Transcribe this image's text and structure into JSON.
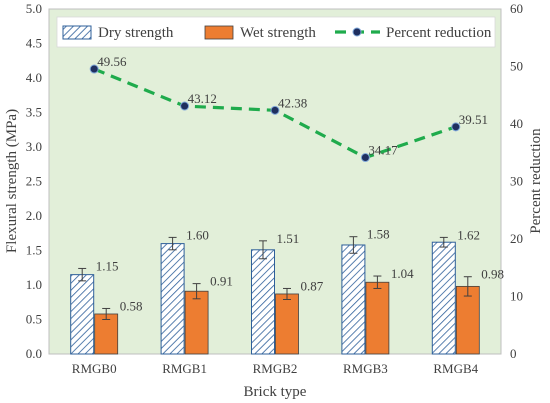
{
  "chart_data": {
    "type": "bar",
    "xlabel": "Brick type",
    "ylabel": "Flexural strength (MPa)",
    "y2label": "Percent reduction",
    "categories": [
      "RMGB0",
      "RMGB1",
      "RMGB2",
      "RMGB3",
      "RMGB4"
    ],
    "ylim": [
      0,
      5.0
    ],
    "y2lim": [
      0,
      60
    ],
    "yticks": [
      "0.0",
      "0.5",
      "1.0",
      "1.5",
      "2.0",
      "2.5",
      "3.0",
      "3.5",
      "4.0",
      "4.5",
      "5.0"
    ],
    "y2ticks": [
      "0",
      "10",
      "20",
      "30",
      "40",
      "50",
      "60"
    ],
    "grid": false,
    "legend_position": "top",
    "colors": {
      "plot_bg": "#e2efd9",
      "dry": "#2e5f9a",
      "wet": "#ed7d31",
      "line": "#1fab4c",
      "marker": "#1f2f5f"
    },
    "series": [
      {
        "name": "Dry strength",
        "kind": "bar",
        "values": [
          1.15,
          1.6,
          1.51,
          1.58,
          1.62
        ],
        "labels": [
          "1.15",
          "1.60",
          "1.51",
          "1.58",
          "1.62"
        ],
        "errors": [
          0.09,
          0.09,
          0.13,
          0.12,
          0.07
        ]
      },
      {
        "name": "Wet strength",
        "kind": "bar",
        "values": [
          0.58,
          0.91,
          0.87,
          1.04,
          0.98
        ],
        "labels": [
          "0.58",
          "0.91",
          "0.87",
          "1.04",
          "0.98"
        ],
        "errors": [
          0.08,
          0.11,
          0.08,
          0.09,
          0.14
        ]
      },
      {
        "name": "Percent reduction",
        "kind": "line",
        "axis": "right",
        "values": [
          49.56,
          43.12,
          42.38,
          34.17,
          39.51
        ],
        "labels": [
          "49.56",
          "43.12",
          "42.38",
          "34.17",
          "39.51"
        ]
      }
    ]
  }
}
